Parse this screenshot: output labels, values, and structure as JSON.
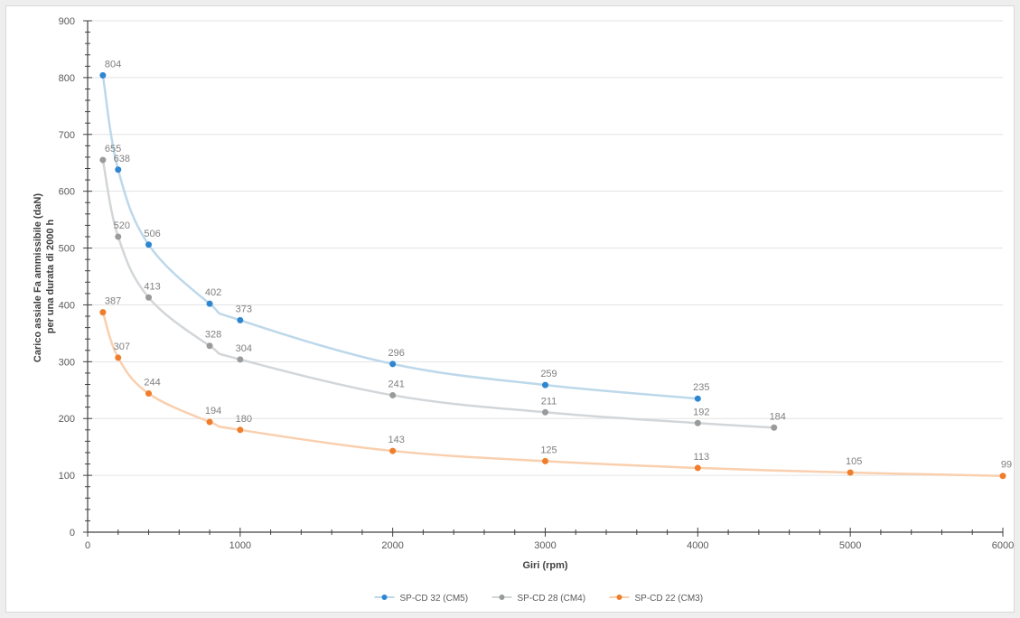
{
  "chart_data": {
    "type": "line",
    "title": "",
    "xlabel": "Giri (rpm)",
    "ylabel_lines": [
      "Carico assiale Fa ammissibile  (daN)",
      "per una durata di 2000 h"
    ],
    "xlim": [
      0,
      6000
    ],
    "ylim": [
      0,
      900
    ],
    "x_ticks": [
      0,
      1000,
      2000,
      3000,
      4000,
      5000,
      6000
    ],
    "y_ticks": [
      0,
      100,
      200,
      300,
      400,
      500,
      600,
      700,
      800,
      900
    ],
    "grid": "horizontal",
    "legend_position": "bottom",
    "series": [
      {
        "name": "SP-CD 32  (CM5)",
        "color": "#2e86d1",
        "line_color": "#bcd8ea",
        "x": [
          100,
          200,
          400,
          800,
          1000,
          2000,
          3000,
          4000
        ],
        "y": [
          804,
          638,
          506,
          402,
          373,
          296,
          259,
          235
        ]
      },
      {
        "name": "SP-CD 28  (CM4)",
        "color": "#9a9a9a",
        "line_color": "#d2d6d9",
        "x": [
          100,
          200,
          400,
          800,
          1000,
          2000,
          3000,
          4000,
          4500
        ],
        "y": [
          655,
          520,
          413,
          328,
          304,
          241,
          211,
          192,
          184
        ]
      },
      {
        "name": "SP-CD 22  (CM3)",
        "color": "#f07d2c",
        "line_color": "#f9cfae",
        "x": [
          100,
          200,
          400,
          800,
          1000,
          2000,
          3000,
          4000,
          5000,
          6000
        ],
        "y": [
          387,
          307,
          244,
          194,
          180,
          143,
          125,
          113,
          105,
          99
        ]
      }
    ]
  }
}
